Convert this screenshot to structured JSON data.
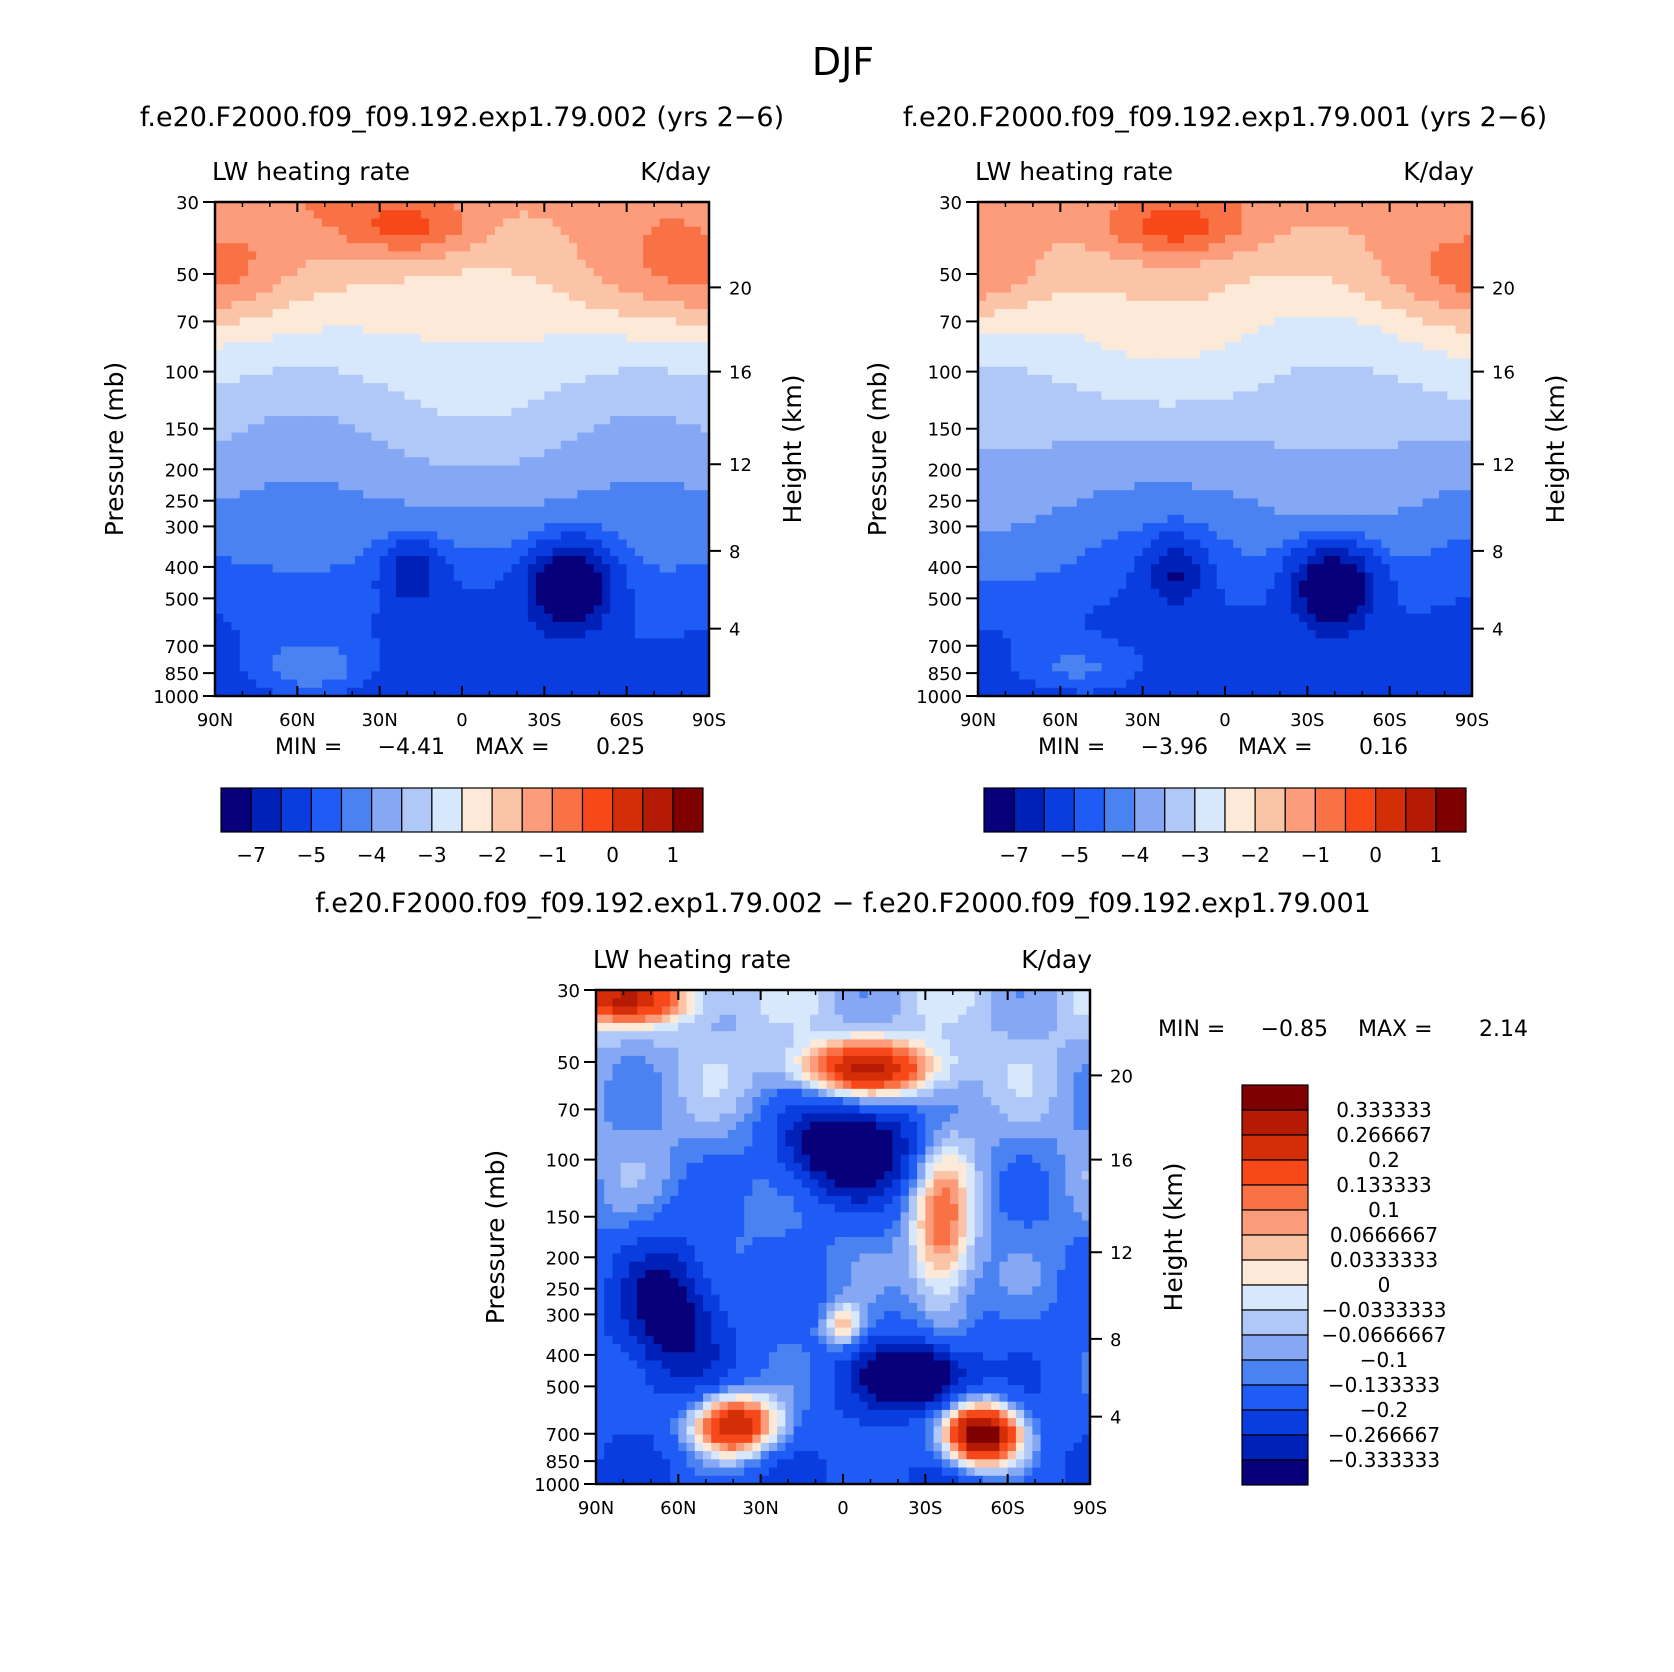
{
  "figure": {
    "title": "DJF"
  },
  "colors": {
    "palette": [
      "#08007a",
      "#0021b8",
      "#0a3de0",
      "#1f5cf5",
      "#4a82f2",
      "#86a8f4",
      "#b0c8f8",
      "#d8e8fc",
      "#fde9d8",
      "#fcc4a6",
      "#fc9c7a",
      "#f97245",
      "#f7481a",
      "#d42e08",
      "#b41a04",
      "#7e0000"
    ],
    "frame": "#000000",
    "background": "#ffffff"
  },
  "chart_data": [
    {
      "id": "top-left",
      "type": "heatmap",
      "title": "f.e20.F2000.f09_f09.192.exp1.79.002 (yrs 2−6)",
      "variable": "LW heating rate",
      "units": "K/day",
      "xlabel": "",
      "ylabel": "Pressure (mb)",
      "ylabel_right": "Height (km)",
      "x_ticks": [
        "90N",
        "60N",
        "30N",
        "0",
        "30S",
        "60S",
        "90S"
      ],
      "y_ticks": [
        "30",
        "50",
        "70",
        "100",
        "150",
        "200",
        "250",
        "300",
        "400",
        "500",
        "700",
        "850",
        "1000"
      ],
      "height_ticks": [
        "20",
        "16",
        "12",
        "8",
        "4"
      ],
      "min_label": "MIN =",
      "min": "−4.41",
      "max_label": "MAX =",
      "max": "0.25",
      "colorbar": {
        "orientation": "horizontal",
        "tick_labels": [
          "−7",
          "−5",
          "−4",
          "−3",
          "−2",
          "−1",
          "0",
          "1"
        ]
      }
    },
    {
      "id": "top-right",
      "type": "heatmap",
      "title": "f.e20.F2000.f09_f09.192.exp1.79.001 (yrs 2−6)",
      "variable": "LW heating rate",
      "units": "K/day",
      "xlabel": "",
      "ylabel": "Pressure (mb)",
      "ylabel_right": "Height (km)",
      "x_ticks": [
        "90N",
        "60N",
        "30N",
        "0",
        "30S",
        "60S",
        "90S"
      ],
      "y_ticks": [
        "30",
        "50",
        "70",
        "100",
        "150",
        "200",
        "250",
        "300",
        "400",
        "500",
        "700",
        "850",
        "1000"
      ],
      "height_ticks": [
        "20",
        "16",
        "12",
        "8",
        "4"
      ],
      "min_label": "MIN =",
      "min": "−3.96",
      "max_label": "MAX =",
      "max": "0.16",
      "colorbar": {
        "orientation": "horizontal",
        "tick_labels": [
          "−7",
          "−5",
          "−4",
          "−3",
          "−2",
          "−1",
          "0",
          "1"
        ]
      }
    },
    {
      "id": "bottom",
      "type": "heatmap",
      "title": "f.e20.F2000.f09_f09.192.exp1.79.002 − f.e20.F2000.f09_f09.192.exp1.79.001",
      "variable": "LW heating rate",
      "units": "K/day",
      "xlabel": "",
      "ylabel": "Pressure (mb)",
      "ylabel_right": "Height (km)",
      "x_ticks": [
        "90N",
        "60N",
        "30N",
        "0",
        "30S",
        "60S",
        "90S"
      ],
      "y_ticks": [
        "30",
        "50",
        "70",
        "100",
        "150",
        "200",
        "250",
        "300",
        "400",
        "500",
        "700",
        "850",
        "1000"
      ],
      "height_ticks": [
        "20",
        "16",
        "12",
        "8",
        "4"
      ],
      "min_label": "MIN =",
      "min": "−0.85",
      "max_label": "MAX =",
      "max": "2.14",
      "colorbar": {
        "orientation": "vertical",
        "tick_labels": [
          "0.333333",
          "0.266667",
          "0.2",
          "0.133333",
          "0.1",
          "0.0666667",
          "0.0333333",
          "0",
          "−0.0333333",
          "−0.0666667",
          "−0.1",
          "−0.133333",
          "−0.2",
          "−0.266667",
          "−0.333333"
        ]
      }
    }
  ]
}
